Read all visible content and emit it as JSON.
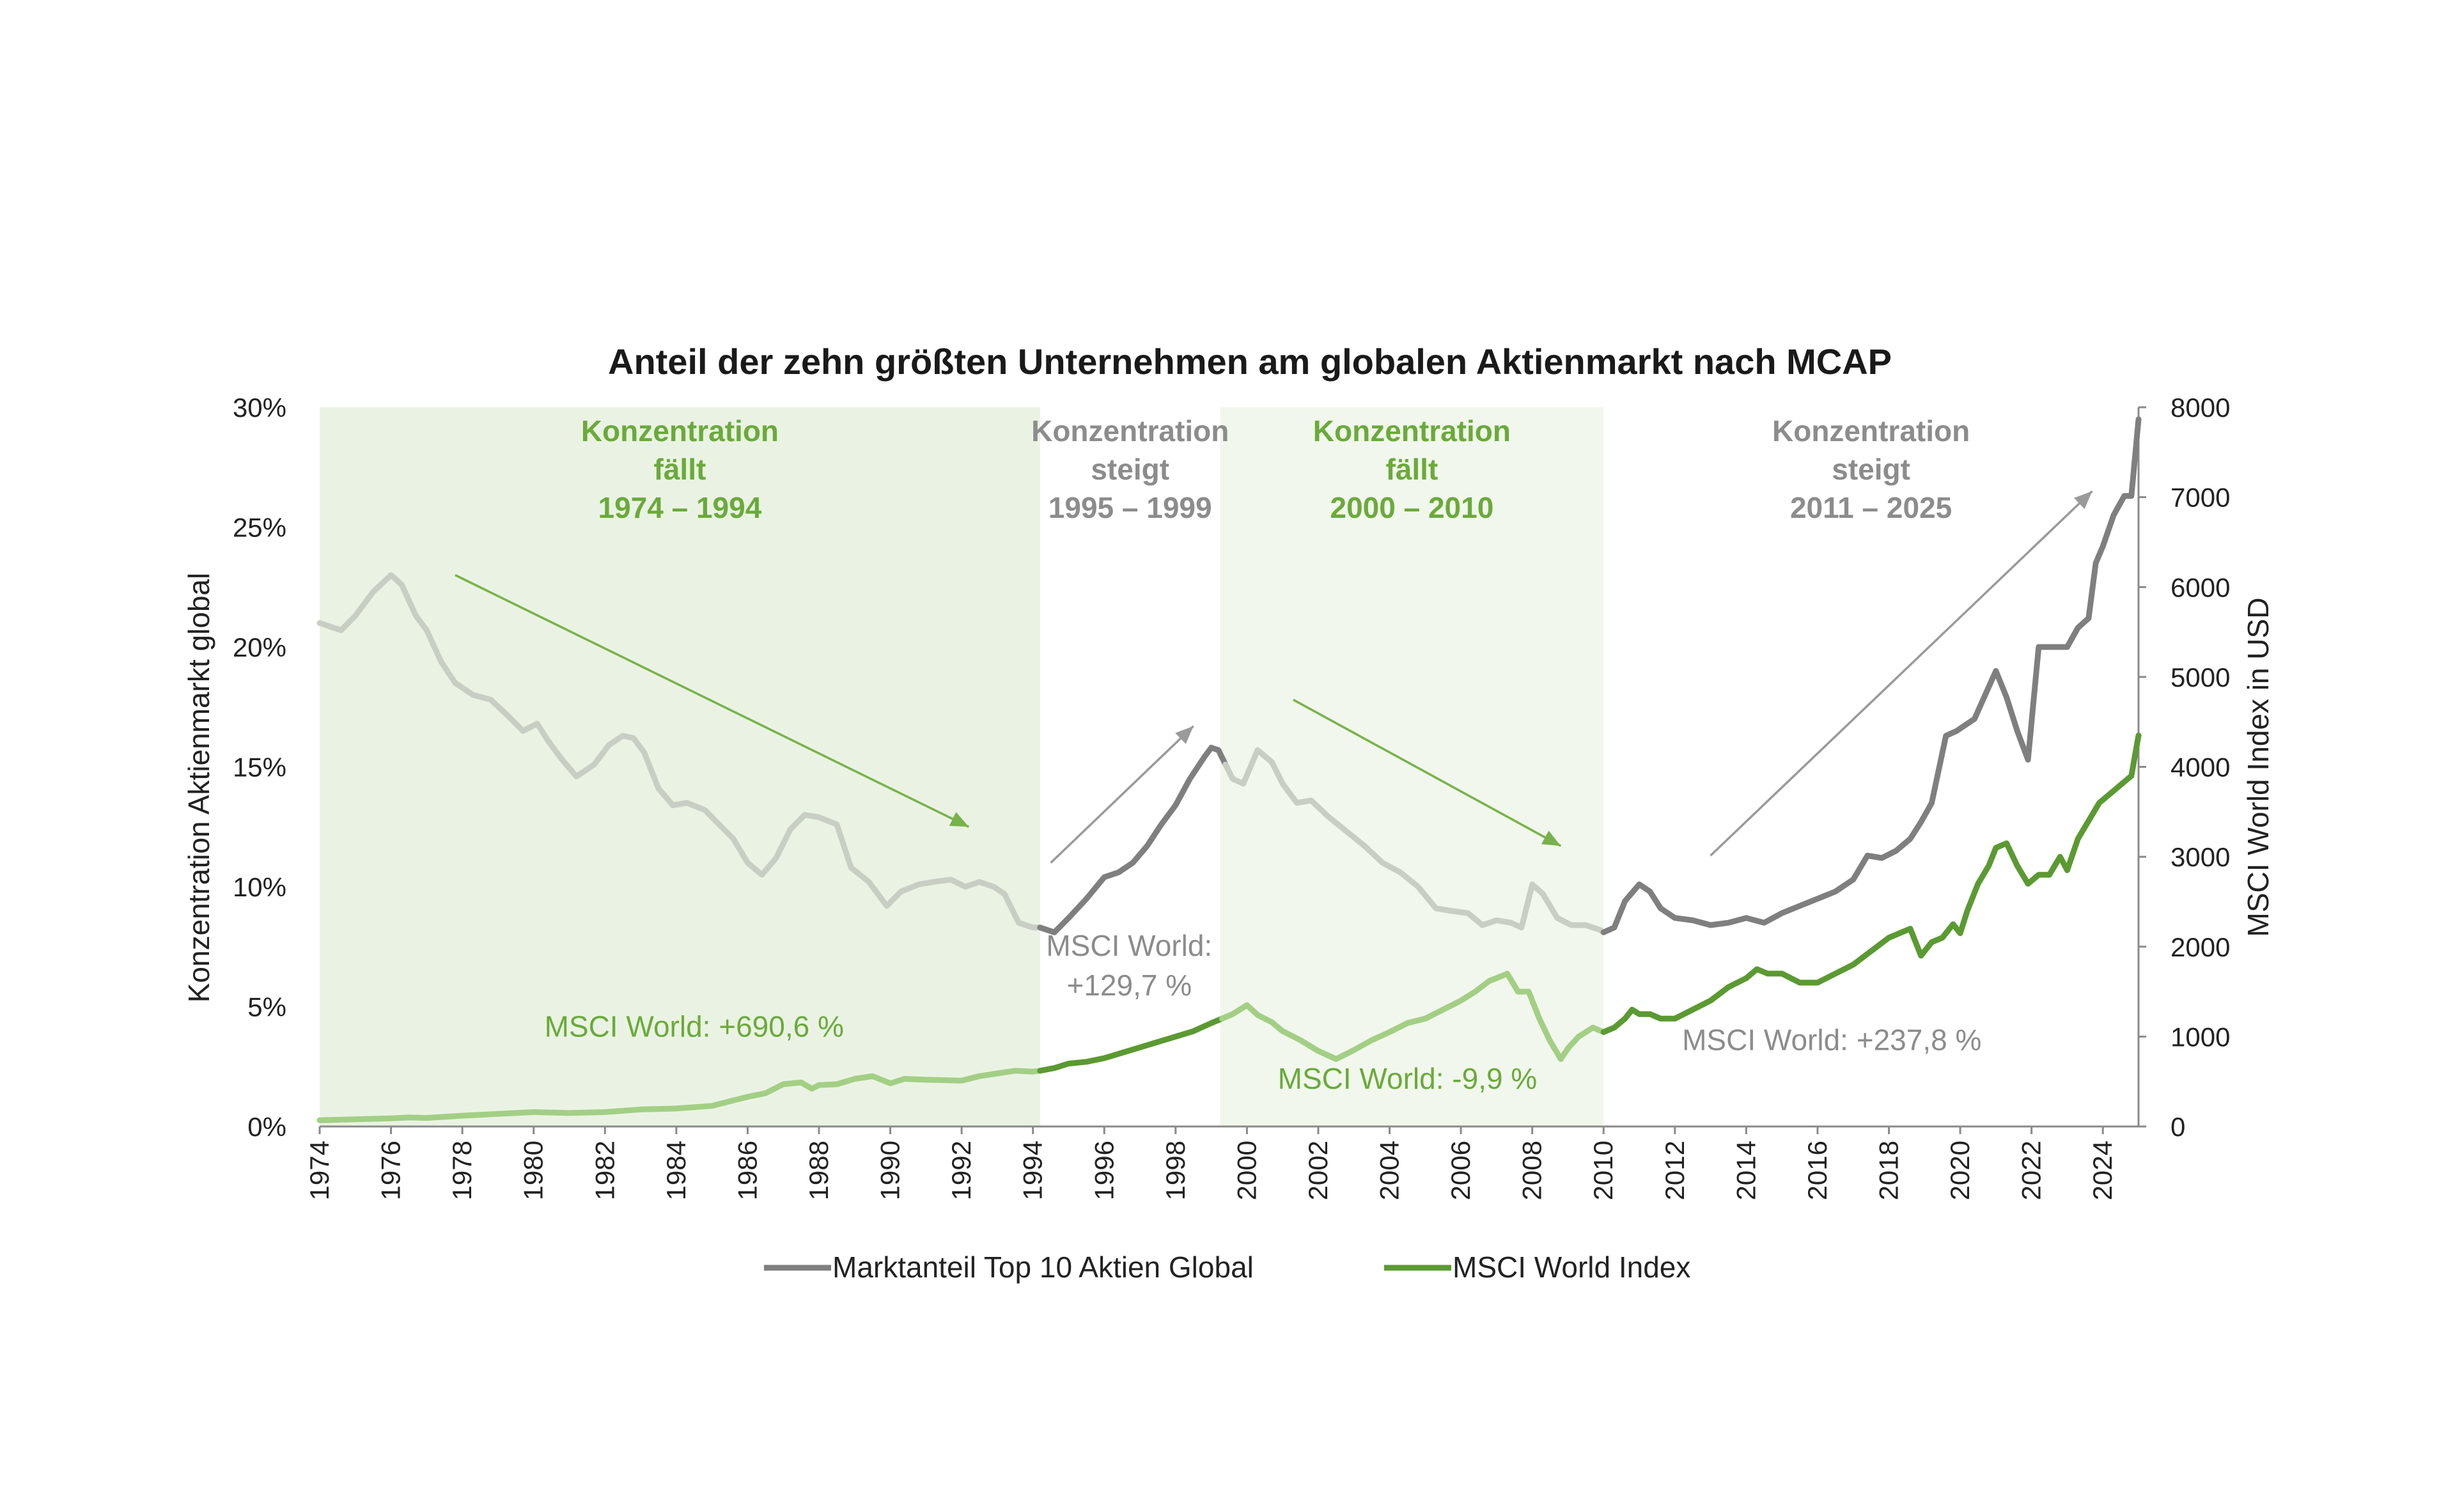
{
  "chart_data": {
    "type": "line",
    "title": "Anteil der zehn größten Unternehmen am globalen Aktienmarkt nach MCAP",
    "ylabel_left": "Konzentration Aktienmarkt global",
    "ylabel_right": "MSCI World Index in USD",
    "xlim": [
      1974,
      2025
    ],
    "ylim_left": [
      0,
      30
    ],
    "ylim_right": [
      0,
      8000
    ],
    "x_ticks": [
      "1974",
      "1976",
      "1978",
      "1980",
      "1982",
      "1984",
      "1986",
      "1988",
      "1990",
      "1992",
      "1994",
      "1996",
      "1998",
      "2000",
      "2002",
      "2004",
      "2006",
      "2008",
      "2010",
      "2012",
      "2014",
      "2016",
      "2018",
      "2020",
      "2022",
      "2024"
    ],
    "y_ticks_left": [
      "0%",
      "5%",
      "10%",
      "15%",
      "20%",
      "25%",
      "30%"
    ],
    "y_ticks_right": [
      "0",
      "1000",
      "2000",
      "3000",
      "4000",
      "5000",
      "6000",
      "7000",
      "8000"
    ],
    "grid": false,
    "legend_position": "bottom",
    "colors": {
      "concentration_dark": "#7f7f7f",
      "concentration_light": "#c8cec4",
      "msci_dark": "#5b9a32",
      "msci_light": "#a3cf85",
      "shade_fall": "#eaf3e3",
      "shade_fall_2": "#f1f7ec",
      "label_green": "#6aaa3a",
      "label_gray": "#8c8c8c",
      "arrow_green": "#78b24a",
      "arrow_gray": "#9a9a9a"
    },
    "regions": [
      {
        "label_lines": [
          "Konzentration",
          "fällt",
          "1974 – 1994"
        ],
        "start": 1974,
        "end": 1994.2,
        "trend": "fällt",
        "shaded": true
      },
      {
        "label_lines": [
          "Konzentration",
          "steigt",
          "1995 – 1999"
        ],
        "start": 1994.2,
        "end": 1999.25,
        "trend": "steigt",
        "shaded": false
      },
      {
        "label_lines": [
          "Konzentration",
          "fällt",
          "2000 – 2010"
        ],
        "start": 1999.25,
        "end": 2010,
        "trend": "fällt",
        "shaded": true
      },
      {
        "label_lines": [
          "Konzentration",
          "steigt",
          "2011 – 2025"
        ],
        "start": 2010,
        "end": 2025,
        "trend": "steigt",
        "shaded": false
      }
    ],
    "annotations": [
      {
        "lines": [
          "MSCI World: +690,6 %"
        ],
        "x": 1984.5,
        "y_right": 1000,
        "color": "label_green"
      },
      {
        "lines": [
          "MSCI World:",
          "+129,7 %"
        ],
        "x": 1996.7,
        "y_right": 1900,
        "color": "label_gray"
      },
      {
        "lines": [
          "MSCI World: -9,9 %"
        ],
        "x": 2004.5,
        "y_right": 420,
        "color": "label_green"
      },
      {
        "lines": [
          "MSCI World: +237,8 %"
        ],
        "x": 2016.4,
        "y_right": 850,
        "color": "label_gray"
      }
    ],
    "arrows": [
      {
        "from": [
          1977.8,
          23.0
        ],
        "to": [
          1992.2,
          12.5
        ],
        "color": "arrow_green"
      },
      {
        "from": [
          1994.5,
          11.0
        ],
        "to": [
          1998.5,
          16.7
        ],
        "color": "arrow_gray"
      },
      {
        "from": [
          2001.3,
          17.8
        ],
        "to": [
          2008.8,
          11.7
        ],
        "color": "arrow_green"
      },
      {
        "from": [
          2013.0,
          11.3
        ],
        "to": [
          2023.7,
          26.5
        ],
        "color": "arrow_gray"
      }
    ],
    "series": [
      {
        "name": "Marktanteil Top 10 Aktien Global",
        "axis": "left",
        "unit": "%",
        "x": [
          1974.0,
          1974.6,
          1975.0,
          1975.5,
          1976.0,
          1976.3,
          1976.7,
          1977.0,
          1977.4,
          1977.8,
          1978.3,
          1978.8,
          1979.3,
          1979.7,
          1980.1,
          1980.4,
          1980.8,
          1981.2,
          1981.7,
          1982.1,
          1982.5,
          1982.8,
          1983.1,
          1983.5,
          1983.9,
          1984.3,
          1984.8,
          1985.2,
          1985.6,
          1986.0,
          1986.4,
          1986.8,
          1987.2,
          1987.6,
          1988.0,
          1988.5,
          1988.9,
          1989.4,
          1989.9,
          1990.3,
          1990.8,
          1991.2,
          1991.7,
          1992.1,
          1992.5,
          1992.9,
          1993.2,
          1993.6,
          1994.0,
          1994.2,
          1994.6,
          1995.0,
          1995.5,
          1996.0,
          1996.4,
          1996.8,
          1997.2,
          1997.6,
          1998.0,
          1998.4,
          1998.8,
          1999.0,
          1999.2,
          1999.4,
          1999.6,
          1999.9,
          2000.3,
          2000.7,
          2001.0,
          2001.4,
          2001.8,
          2002.3,
          2002.8,
          2003.3,
          2003.8,
          2004.3,
          2004.8,
          2005.3,
          2005.7,
          2006.2,
          2006.6,
          2007.0,
          2007.4,
          2007.7,
          2008.0,
          2008.3,
          2008.7,
          2009.1,
          2009.5,
          2009.9,
          2010.0,
          2010.3,
          2010.6,
          2011.0,
          2011.3,
          2011.6,
          2012.0,
          2012.5,
          2013.0,
          2013.5,
          2014.0,
          2014.5,
          2015.0,
          2015.5,
          2016.0,
          2016.5,
          2017.0,
          2017.4,
          2017.8,
          2018.2,
          2018.6,
          2018.9,
          2019.2,
          2019.6,
          2019.9,
          2020.2,
          2020.4,
          2020.7,
          2021.0,
          2021.3,
          2021.6,
          2021.9,
          2022.2,
          2022.5,
          2022.8,
          2023.0,
          2023.3,
          2023.6,
          2023.8,
          2024.0,
          2024.3,
          2024.6,
          2024.8,
          2025.0
        ],
        "values": [
          21.0,
          20.7,
          21.3,
          22.3,
          23.0,
          22.6,
          21.3,
          20.7,
          19.4,
          18.5,
          18.0,
          17.8,
          17.1,
          16.5,
          16.8,
          16.1,
          15.3,
          14.6,
          15.1,
          15.9,
          16.3,
          16.2,
          15.6,
          14.1,
          13.4,
          13.5,
          13.2,
          12.6,
          12.0,
          11.0,
          10.5,
          11.2,
          12.4,
          13.0,
          12.9,
          12.6,
          10.8,
          10.2,
          9.2,
          9.8,
          10.1,
          10.2,
          10.3,
          10.0,
          10.2,
          10.0,
          9.7,
          8.5,
          8.3,
          8.3,
          8.1,
          8.7,
          9.5,
          10.4,
          10.6,
          11.0,
          11.7,
          12.6,
          13.4,
          14.5,
          15.4,
          15.8,
          15.7,
          15.1,
          14.5,
          14.3,
          15.7,
          15.2,
          14.3,
          13.5,
          13.6,
          12.9,
          12.3,
          11.7,
          11.0,
          10.6,
          10.0,
          9.1,
          9.0,
          8.9,
          8.4,
          8.6,
          8.5,
          8.3,
          10.1,
          9.7,
          8.7,
          8.4,
          8.4,
          8.2,
          8.1,
          8.3,
          9.4,
          10.1,
          9.8,
          9.1,
          8.7,
          8.6,
          8.4,
          8.5,
          8.7,
          8.5,
          8.9,
          9.2,
          9.5,
          9.8,
          10.3,
          11.3,
          11.2,
          11.5,
          12.0,
          12.7,
          13.5,
          16.3,
          16.5,
          16.8,
          17.0,
          18.0,
          19.0,
          17.9,
          16.5,
          15.3,
          20.0,
          20.0,
          20.0,
          20.0,
          20.8,
          21.2,
          23.5,
          24.2,
          25.5,
          26.3,
          26.3,
          29.5
        ],
        "highlight_ranges": [
          [
            1994.2,
            1999.25
          ],
          [
            2010.0,
            2025.0
          ]
        ]
      },
      {
        "name": "MSCI World Index",
        "axis": "right",
        "unit": "USD",
        "x": [
          1974.0,
          1975.0,
          1976.0,
          1976.5,
          1977.0,
          1978.0,
          1979.0,
          1980.0,
          1981.0,
          1982.0,
          1983.0,
          1984.0,
          1985.0,
          1986.0,
          1986.5,
          1987.0,
          1987.5,
          1987.8,
          1988.0,
          1988.5,
          1989.0,
          1989.5,
          1990.0,
          1990.4,
          1991.0,
          1992.0,
          1992.5,
          1993.0,
          1993.5,
          1994.0,
          1994.2,
          1994.6,
          1995.0,
          1995.5,
          1996.0,
          1996.5,
          1997.0,
          1997.5,
          1998.0,
          1998.5,
          1999.0,
          1999.3,
          1999.6,
          2000.0,
          2000.3,
          2000.7,
          2001.0,
          2001.5,
          2002.0,
          2002.5,
          2003.0,
          2003.5,
          2004.0,
          2004.5,
          2005.0,
          2005.5,
          2006.0,
          2006.4,
          2006.8,
          2007.0,
          2007.3,
          2007.6,
          2007.9,
          2008.2,
          2008.5,
          2008.8,
          2009.0,
          2009.3,
          2009.7,
          2010.0,
          2010.3,
          2010.6,
          2010.8,
          2011.0,
          2011.3,
          2011.6,
          2012.0,
          2012.5,
          2013.0,
          2013.5,
          2014.0,
          2014.3,
          2014.6,
          2015.0,
          2015.5,
          2016.0,
          2016.5,
          2017.0,
          2017.5,
          2018.0,
          2018.3,
          2018.6,
          2018.9,
          2019.2,
          2019.5,
          2019.8,
          2020.0,
          2020.2,
          2020.5,
          2020.8,
          2021.0,
          2021.3,
          2021.6,
          2021.9,
          2022.2,
          2022.5,
          2022.8,
          2023.0,
          2023.3,
          2023.6,
          2023.9,
          2024.2,
          2024.5,
          2024.8,
          2025.0
        ],
        "values": [
          70,
          80,
          90,
          100,
          95,
          120,
          140,
          160,
          150,
          160,
          190,
          200,
          230,
          330,
          370,
          470,
          490,
          420,
          460,
          470,
          530,
          560,
          480,
          530,
          520,
          510,
          560,
          590,
          620,
          610,
          620,
          650,
          700,
          720,
          760,
          820,
          880,
          940,
          1000,
          1060,
          1150,
          1200,
          1250,
          1350,
          1240,
          1160,
          1060,
          960,
          840,
          750,
          850,
          960,
          1050,
          1150,
          1200,
          1300,
          1400,
          1500,
          1620,
          1650,
          1700,
          1500,
          1500,
          1200,
          950,
          750,
          870,
          1000,
          1100,
          1050,
          1100,
          1200,
          1300,
          1250,
          1250,
          1200,
          1200,
          1300,
          1400,
          1550,
          1650,
          1750,
          1700,
          1700,
          1600,
          1600,
          1700,
          1800,
          1950,
          2100,
          2150,
          2200,
          1900,
          2050,
          2100,
          2250,
          2150,
          2400,
          2700,
          2900,
          3100,
          3150,
          2900,
          2700,
          2800,
          2800,
          3000,
          2850,
          3200,
          3400,
          3600,
          3700,
          3800,
          3900,
          4350
        ],
        "highlight_ranges": [
          [
            1994.2,
            1999.25
          ],
          [
            2010.0,
            2025.0
          ]
        ]
      }
    ]
  }
}
